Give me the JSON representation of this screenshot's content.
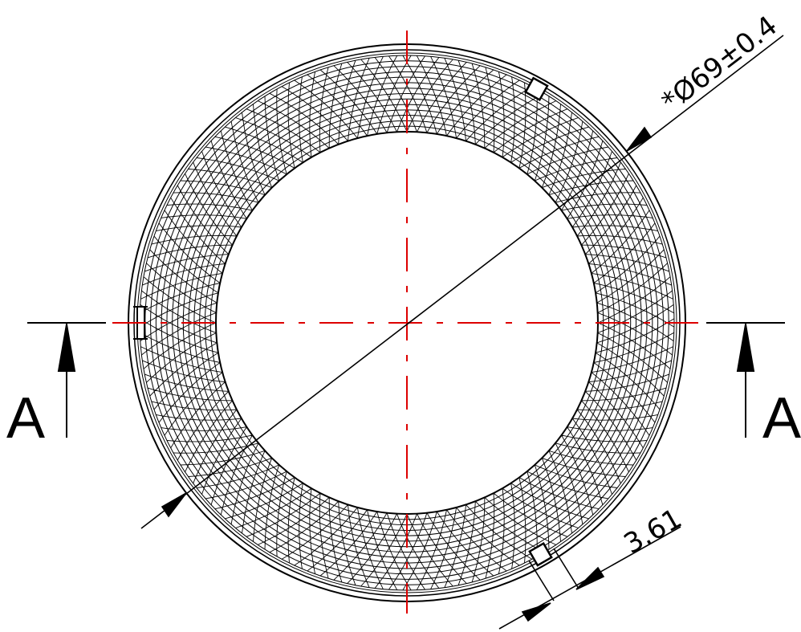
{
  "section_label_left": "A",
  "section_label_right": "A",
  "diameter_dimension": "*Ø69±0.4",
  "slot_width_dimension": "3.61",
  "colors": {
    "outline": "#000000",
    "centerline": "#dd0000",
    "background": "#ffffff"
  }
}
